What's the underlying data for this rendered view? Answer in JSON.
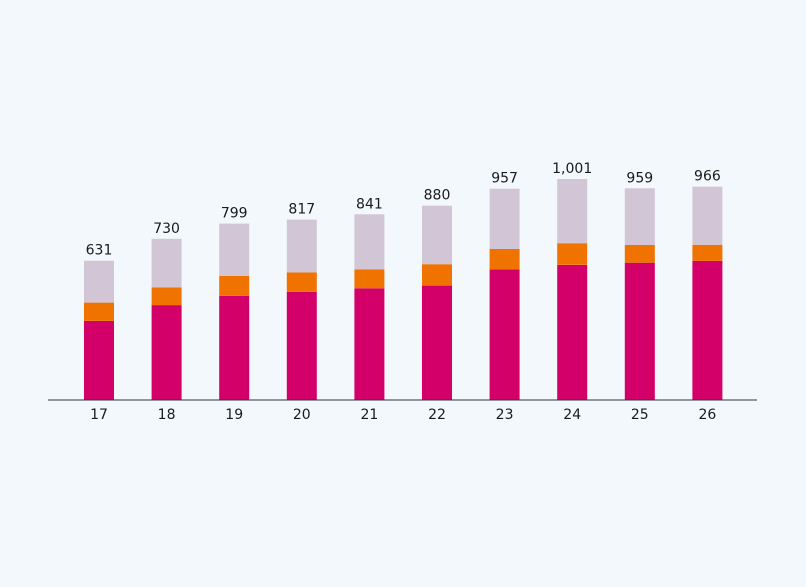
{
  "chart_data": {
    "type": "bar",
    "stacked": true,
    "categories": [
      "17",
      "18",
      "19",
      "20",
      "21",
      "22",
      "23",
      "24",
      "25",
      "26"
    ],
    "totals": [
      "631",
      "730",
      "799",
      "817",
      "841",
      "880",
      "957",
      "1,001",
      "959",
      "966"
    ],
    "series": [
      {
        "color": "#d4006a",
        "values": [
          358,
          430,
          472,
          490,
          506,
          518,
          592,
          612,
          622,
          630
        ]
      },
      {
        "color": "#f07300",
        "values": [
          83,
          80,
          90,
          88,
          85,
          97,
          92,
          98,
          80,
          73
        ]
      },
      {
        "color": "#d2c5d6",
        "values": [
          190,
          220,
          237,
          239,
          250,
          265,
          273,
          291,
          257,
          263
        ]
      }
    ],
    "ylim": [
      0,
      1001
    ],
    "grid": false,
    "legend": "none",
    "colors": {
      "axis": "#333333",
      "background": "#f3f8fc",
      "text": "#1a1a1a"
    }
  }
}
